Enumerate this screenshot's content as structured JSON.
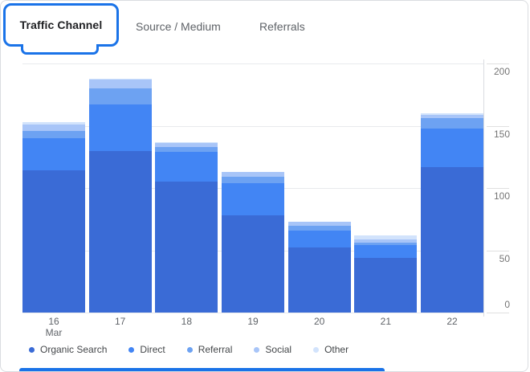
{
  "tabs": {
    "items": [
      {
        "label": "Traffic Channel",
        "active": true
      },
      {
        "label": "Source / Medium",
        "active": false
      },
      {
        "label": "Referrals",
        "active": false
      }
    ]
  },
  "colors": {
    "accent": "#1a73e8",
    "card_border": "#dadce0",
    "gridline": "#e8eaed",
    "tick_label": "#757575",
    "x_label": "#5f6368",
    "legend_label": "#44474a"
  },
  "chart_data": {
    "type": "bar",
    "stacked": true,
    "title": "",
    "xlabel": "",
    "ylabel": "",
    "categories": [
      "16",
      "17",
      "18",
      "19",
      "20",
      "21",
      "22"
    ],
    "month_label": "Mar",
    "month_under_index": 0,
    "series": [
      {
        "name": "Organic Search",
        "color": "#3a6bd6",
        "values": [
          114,
          130,
          105,
          78,
          52,
          44,
          117
        ]
      },
      {
        "name": "Direct",
        "color": "#4285f4",
        "values": [
          26,
          37,
          24,
          26,
          14,
          10,
          31
        ]
      },
      {
        "name": "Referral",
        "color": "#6da2f2",
        "values": [
          6,
          13,
          4,
          5,
          4,
          2,
          8
        ]
      },
      {
        "name": "Social",
        "color": "#a8c5f8",
        "values": [
          5,
          7,
          3,
          4,
          3,
          3,
          3
        ]
      },
      {
        "name": "Other",
        "color": "#d2e3fc",
        "values": [
          2,
          1,
          1,
          0,
          0,
          3,
          1
        ]
      }
    ],
    "totals": [
      153,
      188,
      137,
      113,
      73,
      62,
      160
    ],
    "y_ticks": [
      0,
      50,
      100,
      150,
      200
    ],
    "ylim": [
      0,
      200
    ],
    "grid": true,
    "legend_position": "bottom"
  }
}
